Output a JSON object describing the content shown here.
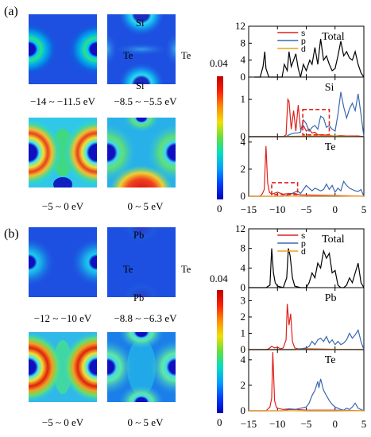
{
  "panels": [
    {
      "label": "(a)",
      "maps": [
        {
          "caption": "−14 ~ −11.5 eV",
          "atoms": []
        },
        {
          "caption": "−8.5 ~ −5.5 eV",
          "atoms": [
            "Si",
            "Te",
            "Te",
            "Si"
          ]
        },
        {
          "caption": "−5 ~ 0 eV",
          "atoms": []
        },
        {
          "caption": "0 ~ 5 eV",
          "atoms": []
        }
      ],
      "colorbar": {
        "max_label": "0.04",
        "min_label": "0"
      }
    },
    {
      "label": "(b)",
      "maps": [
        {
          "caption": "−12 ~ −10 eV",
          "atoms": []
        },
        {
          "caption": "−8.8 ~ −6.3 eV",
          "atoms": [
            "Pb",
            "Te",
            "Te",
            "Pb"
          ]
        },
        {
          "caption": "−5 ~ 0 eV",
          "atoms": []
        },
        {
          "caption": "0 ~ 5 eV",
          "atoms": []
        }
      ],
      "colorbar": {
        "max_label": "0.04",
        "min_label": "0"
      }
    }
  ],
  "colors": {
    "s": "#e0201b",
    "p": "#3a68b0",
    "d": "#f0a11a",
    "total": "#000000"
  },
  "chart_data": [
    {
      "type": "line",
      "panel": "(a)",
      "xlim": [
        -15,
        5
      ],
      "xticks": [
        "−15",
        "−10",
        "−5",
        "0",
        "5"
      ],
      "legend": [
        "s",
        "p",
        "d"
      ],
      "legend_position": "top-center",
      "subplots": [
        {
          "label": "Total",
          "ylim": [
            0,
            12
          ],
          "yticks": [
            "0",
            "4",
            "8",
            "12"
          ],
          "series": [
            {
              "name": "total",
              "x": [
                -14,
                -13,
                -12.5,
                -12.2,
                -12,
                -11.5,
                -10,
                -9.2,
                -8.8,
                -8.3,
                -8,
                -7.6,
                -7.2,
                -6.8,
                -6.4,
                -6,
                -5.5,
                -5,
                -4.4,
                -4,
                -3.5,
                -3,
                -2.5,
                -2,
                -1.5,
                -1,
                -0.5,
                0,
                0.5,
                1,
                1.5,
                2,
                2.5,
                3,
                3.5,
                4,
                4.5,
                5
              ],
              "y": [
                0,
                0,
                2.5,
                6,
                2,
                0,
                0,
                0,
                3,
                1.5,
                6,
                2.5,
                4,
                5.5,
                2,
                0,
                3,
                1.5,
                4,
                3,
                7,
                3,
                9,
                4,
                5,
                3,
                1.5,
                2,
                5,
                8.5,
                5,
                6,
                4.5,
                4,
                6,
                3,
                1,
                0
              ]
            }
          ]
        },
        {
          "label": "Si",
          "ylim": [
            0,
            1.6
          ],
          "yticks": [
            "0",
            "1"
          ],
          "series": [
            {
              "name": "s",
              "x": [
                -15,
                -10,
                -9,
                -8.5,
                -8.2,
                -8,
                -7.6,
                -7.2,
                -6.8,
                -6.4,
                -6,
                -5.5,
                -5,
                -4.5,
                -4,
                -3.5,
                -3,
                -2,
                -1,
                0,
                1,
                2,
                3,
                4,
                5
              ],
              "y": [
                0,
                0,
                0,
                0.05,
                1.0,
                0.95,
                0.2,
                0.7,
                0.15,
                0.85,
                0.2,
                0.3,
                0.15,
                0.2,
                0.1,
                0.12,
                0.05,
                0.05,
                0.03,
                0.02,
                0.03,
                0.02,
                0.02,
                0.02,
                0
              ]
            },
            {
              "name": "p",
              "x": [
                -15,
                -10,
                -9,
                -8.5,
                -8,
                -7.5,
                -7,
                -6.5,
                -6,
                -5.5,
                -5,
                -4.5,
                -4,
                -3.5,
                -3,
                -2.5,
                -2,
                -1.5,
                -1,
                -0.5,
                0,
                0.5,
                1,
                1.5,
                2,
                2.5,
                3,
                3.5,
                4,
                4.5,
                5
              ],
              "y": [
                0,
                0,
                0,
                0,
                0.05,
                0.08,
                0.1,
                0.1,
                0.12,
                0.45,
                0.35,
                0.15,
                0.25,
                0.3,
                0.2,
                0.55,
                0.5,
                0.25,
                0.3,
                0.2,
                0.15,
                0.6,
                1.2,
                0.8,
                0.5,
                0.75,
                0.9,
                0.7,
                1.15,
                0.6,
                0
              ]
            },
            {
              "name": "d",
              "x": [
                -15,
                -10,
                -5,
                0,
                5
              ],
              "y": [
                0,
                0,
                0.02,
                0.02,
                0
              ]
            }
          ]
        },
        {
          "label": "Te",
          "ylim": [
            0,
            4.4
          ],
          "yticks": [
            "0",
            "2",
            "4"
          ],
          "series": [
            {
              "name": "s",
              "x": [
                -15,
                -13,
                -12.6,
                -12.3,
                -12,
                -11.7,
                -11.4,
                -11,
                -10,
                -9,
                -8,
                -7,
                -6,
                -5,
                0,
                5
              ],
              "y": [
                0,
                0,
                0.2,
                0.5,
                3.7,
                1.0,
                0.3,
                0.15,
                0.3,
                0.15,
                0.2,
                0.2,
                0.1,
                0.1,
                0.05,
                0
              ]
            },
            {
              "name": "p",
              "x": [
                -15,
                -9,
                -8,
                -7,
                -6.5,
                -6,
                -5.5,
                -5,
                -4.5,
                -4,
                -3.5,
                -3,
                -2.5,
                -2,
                -1.5,
                -1,
                -0.5,
                0,
                0.5,
                1,
                1.5,
                2,
                2.5,
                3,
                3.5,
                4,
                4.5,
                5
              ],
              "y": [
                0,
                0,
                0.1,
                0.3,
                0.4,
                0.2,
                0.5,
                0.8,
                0.6,
                0.4,
                0.6,
                0.5,
                0.4,
                0.5,
                0.9,
                0.5,
                0.8,
                0.3,
                0.6,
                0.4,
                1.1,
                0.8,
                0.6,
                0.5,
                0.4,
                0.35,
                0.5,
                0
              ]
            },
            {
              "name": "d",
              "x": [
                -15,
                -10,
                -5,
                0,
                5
              ],
              "y": [
                0,
                0,
                0.02,
                0.02,
                0
              ]
            }
          ]
        }
      ]
    },
    {
      "type": "line",
      "panel": "(b)",
      "xlim": [
        -15,
        5
      ],
      "xticks": [
        "−15",
        "−10",
        "−5",
        "0",
        "5"
      ],
      "legend": [
        "s",
        "p",
        "d"
      ],
      "legend_position": "top-center",
      "subplots": [
        {
          "label": "Total",
          "ylim": [
            0,
            12
          ],
          "yticks": [
            "0",
            "4",
            "8",
            "12"
          ],
          "series": [
            {
              "name": "total",
              "x": [
                -15,
                -12,
                -11.3,
                -11,
                -10.7,
                -10.4,
                -10,
                -9,
                -8.4,
                -8.1,
                -7.8,
                -7.4,
                -7,
                -6,
                -5,
                -4.5,
                -4,
                -3.5,
                -3,
                -2.5,
                -2,
                -1.5,
                -1,
                -0.5,
                0,
                0.5,
                1,
                1.5,
                2,
                2.5,
                3,
                3.5,
                4,
                4.5,
                5
              ],
              "y": [
                0,
                0,
                0.5,
                8,
                3,
                1,
                0.3,
                0,
                2,
                8,
                6.5,
                2,
                0.3,
                0,
                0,
                1,
                3,
                2,
                5,
                4,
                7.5,
                6,
                7,
                3,
                3.5,
                0.5,
                0,
                0,
                0.5,
                2,
                1,
                3,
                5,
                1,
                0
              ]
            }
          ]
        },
        {
          "label": "Pb",
          "ylim": [
            0,
            3.8
          ],
          "yticks": [
            "0",
            "1",
            "2",
            "3"
          ],
          "series": [
            {
              "name": "s",
              "x": [
                -15,
                -12,
                -11.5,
                -11,
                -10.5,
                -10,
                -9.5,
                -9,
                -8.5,
                -8.3,
                -8,
                -7.7,
                -7.4,
                -7,
                -6.5,
                -6,
                -5,
                0,
                5
              ],
              "y": [
                0,
                0,
                0.05,
                0.2,
                0.1,
                0.15,
                0.05,
                0.1,
                0.6,
                2.8,
                1.5,
                2.2,
                0.5,
                0.1,
                0.05,
                0.05,
                0.05,
                0.02,
                0
              ]
            },
            {
              "name": "p",
              "x": [
                -15,
                -7,
                -6,
                -5,
                -4.5,
                -4,
                -3.5,
                -3,
                -2.5,
                -2,
                -1.5,
                -1,
                -0.5,
                0,
                0.5,
                1,
                1.5,
                2,
                2.5,
                3,
                3.5,
                4,
                4.5,
                5
              ],
              "y": [
                0,
                0,
                0.05,
                0.1,
                0.2,
                0.5,
                0.3,
                0.6,
                0.7,
                0.5,
                0.8,
                0.4,
                0.6,
                0.3,
                0.5,
                0.3,
                0.4,
                0.6,
                1.0,
                0.7,
                0.9,
                1.2,
                0.5,
                0
              ]
            },
            {
              "name": "d",
              "x": [
                -15,
                -10,
                -5,
                0,
                5
              ],
              "y": [
                0,
                0,
                0.02,
                0.02,
                0
              ]
            }
          ]
        },
        {
          "label": "Te",
          "ylim": [
            0,
            4.8
          ],
          "yticks": [
            "0",
            "2",
            "4"
          ],
          "series": [
            {
              "name": "s",
              "x": [
                -15,
                -12,
                -11.3,
                -11,
                -10.8,
                -10.5,
                -10.2,
                -10,
                -9,
                -8,
                -5,
                0,
                5
              ],
              "y": [
                0,
                0,
                0.3,
                1.0,
                4.6,
                0.8,
                0.3,
                0.2,
                0.1,
                0.15,
                0.05,
                0.05,
                0
              ]
            },
            {
              "name": "p",
              "x": [
                -15,
                -9,
                -8,
                -7,
                -6,
                -5,
                -4.5,
                -4,
                -3.5,
                -3,
                -2.8,
                -2.5,
                -2,
                -1.5,
                -1,
                -0.5,
                0,
                0.5,
                1,
                1.5,
                2,
                2.5,
                3,
                3.5,
                4,
                4.5,
                5
              ],
              "y": [
                0,
                0,
                0.1,
                0.1,
                0.2,
                0.3,
                0.6,
                1.2,
                1.6,
                2.3,
                1.8,
                2.5,
                1.6,
                1.2,
                0.8,
                0.5,
                0.3,
                0.2,
                0.1,
                0.05,
                0.2,
                0.1,
                0.3,
                0.6,
                0.2,
                0.1,
                0
              ]
            },
            {
              "name": "d",
              "x": [
                -15,
                -10,
                -5,
                0,
                5
              ],
              "y": [
                0,
                0,
                0.02,
                0.02,
                0
              ]
            }
          ]
        }
      ]
    }
  ]
}
